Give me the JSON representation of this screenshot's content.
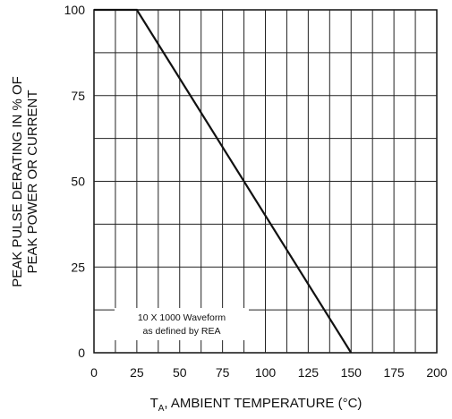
{
  "chart_data": {
    "type": "line",
    "title": "",
    "xlabel_main": "T",
    "xlabel_sub": "A",
    "xlabel_rest": ", AMBIENT TEMPERATURE (°C)",
    "ylabel_line1": "PEAK PULSE DERATING IN % OF",
    "ylabel_line2": "PEAK POWER OR CURRENT",
    "xlim": [
      0,
      200
    ],
    "ylim": [
      0,
      100
    ],
    "x_ticks": [
      "0",
      "25",
      "50",
      "75",
      "100",
      "125",
      "150",
      "175",
      "200"
    ],
    "y_ticks": [
      "0",
      "25",
      "50",
      "75",
      "100"
    ],
    "grid": true,
    "series": [
      {
        "x": [
          0,
          25,
          150
        ],
        "y": [
          100,
          100,
          0
        ]
      }
    ],
    "annotation_line1": "10 X 1000 Waveform",
    "annotation_line2": "as defined by REA"
  }
}
